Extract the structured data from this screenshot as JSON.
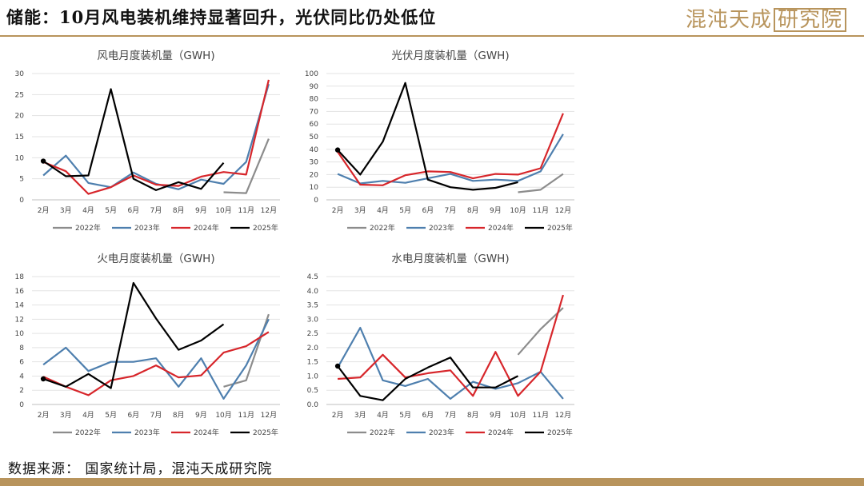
{
  "header": {
    "title": "储能：10月风电装机维持显著回升，光伏同比仍处低位",
    "brand": "混沌天成",
    "brand_box": "研究院"
  },
  "footer": {
    "source": "数据来源：  国家统计局，混沌天成研究院"
  },
  "colors": {
    "2022年": "#8c8c8c",
    "2023年": "#4e7fae",
    "2024年": "#d7262b",
    "2025年": "#000000",
    "accent": "#b8945c"
  },
  "chart_data": [
    {
      "type": "line",
      "title": "风电月度装机量（GWH)",
      "x": [
        "2月",
        "3月",
        "4月",
        "5月",
        "6月",
        "7月",
        "8月",
        "9月",
        "10月",
        "11月",
        "12月"
      ],
      "ylim": [
        0,
        30
      ],
      "yticks": [
        0,
        5,
        10,
        15,
        20,
        25,
        30
      ],
      "series": [
        {
          "name": "2022年",
          "values": [
            null,
            null,
            null,
            null,
            null,
            null,
            null,
            null,
            1.8,
            1.6,
            14.5
          ]
        },
        {
          "name": "2023年",
          "values": [
            5.8,
            10.5,
            4.0,
            3.0,
            6.5,
            3.8,
            2.5,
            4.8,
            3.8,
            9.0,
            27.5
          ]
        },
        {
          "name": "2024年",
          "values": [
            9.0,
            6.8,
            1.4,
            3.0,
            5.8,
            3.6,
            3.3,
            5.5,
            6.6,
            6.0,
            28.5
          ]
        },
        {
          "name": "2025年",
          "values": [
            9.2,
            5.6,
            5.8,
            26.3,
            5.0,
            2.3,
            4.2,
            2.6,
            8.8,
            null,
            null
          ]
        }
      ]
    },
    {
      "type": "line",
      "title": "光伏月度装机量（GWH)",
      "x": [
        "2月",
        "3月",
        "4月",
        "5月",
        "6月",
        "7月",
        "8月",
        "9月",
        "10月",
        "11月",
        "12月"
      ],
      "ylim": [
        0,
        100
      ],
      "yticks": [
        0,
        10,
        20,
        30,
        40,
        50,
        60,
        70,
        80,
        90,
        100
      ],
      "series": [
        {
          "name": "2022年",
          "values": [
            null,
            null,
            null,
            null,
            null,
            null,
            null,
            null,
            6.0,
            8.0,
            20.5
          ]
        },
        {
          "name": "2023年",
          "values": [
            20.5,
            13.0,
            15.0,
            13.5,
            17.0,
            20.5,
            15.0,
            16.0,
            15.0,
            22.5,
            52.0
          ]
        },
        {
          "name": "2024年",
          "values": [
            38.0,
            12.0,
            11.5,
            19.5,
            22.5,
            22.0,
            17.0,
            20.5,
            20.0,
            25.0,
            68.5
          ]
        },
        {
          "name": "2025年",
          "values": [
            39.5,
            20.0,
            46.0,
            92.5,
            16.0,
            10.0,
            8.0,
            9.5,
            14.0,
            null,
            null
          ]
        }
      ]
    },
    {
      "type": "line",
      "title": "火电月度装机量（GWH)",
      "x": [
        "2月",
        "3月",
        "4月",
        "5月",
        "6月",
        "7月",
        "8月",
        "9月",
        "10月",
        "11月",
        "12月"
      ],
      "ylim": [
        0,
        18
      ],
      "yticks": [
        0,
        2,
        4,
        6,
        8,
        10,
        12,
        14,
        16,
        18
      ],
      "series": [
        {
          "name": "2022年",
          "values": [
            null,
            null,
            null,
            null,
            null,
            null,
            null,
            null,
            2.5,
            3.4,
            12.7
          ]
        },
        {
          "name": "2023年",
          "values": [
            5.6,
            8.0,
            4.7,
            6.0,
            6.0,
            6.5,
            2.5,
            6.5,
            0.8,
            5.5,
            12.0
          ]
        },
        {
          "name": "2024年",
          "values": [
            3.9,
            2.5,
            1.3,
            3.4,
            4.0,
            5.5,
            3.8,
            4.1,
            7.3,
            8.2,
            10.2
          ]
        },
        {
          "name": "2025年",
          "values": [
            3.6,
            2.5,
            4.3,
            2.3,
            17.1,
            12.1,
            7.7,
            9.0,
            11.3,
            null,
            null
          ]
        }
      ]
    },
    {
      "type": "line",
      "title": "水电月度装机量（GWH)",
      "x": [
        "2月",
        "3月",
        "4月",
        "5月",
        "6月",
        "7月",
        "8月",
        "9月",
        "10月",
        "11月",
        "12月"
      ],
      "ylim": [
        0,
        4.5
      ],
      "yticks": [
        "0.0",
        "0.5",
        "1.0",
        "1.5",
        "2.0",
        "2.5",
        "3.0",
        "3.5",
        "4.0",
        "4.5"
      ],
      "series": [
        {
          "name": "2022年",
          "values": [
            null,
            null,
            null,
            null,
            null,
            null,
            null,
            null,
            1.75,
            2.65,
            3.4
          ]
        },
        {
          "name": "2023年",
          "values": [
            1.3,
            2.7,
            0.85,
            0.65,
            0.9,
            0.2,
            0.8,
            0.55,
            0.75,
            1.15,
            0.2
          ]
        },
        {
          "name": "2024年",
          "values": [
            0.9,
            0.95,
            1.75,
            0.95,
            1.1,
            1.2,
            0.3,
            1.85,
            0.3,
            1.15,
            3.85
          ]
        },
        {
          "name": "2025年",
          "values": [
            1.35,
            0.3,
            0.15,
            0.9,
            1.3,
            1.65,
            0.6,
            0.6,
            1.0,
            null,
            null
          ]
        }
      ]
    }
  ]
}
